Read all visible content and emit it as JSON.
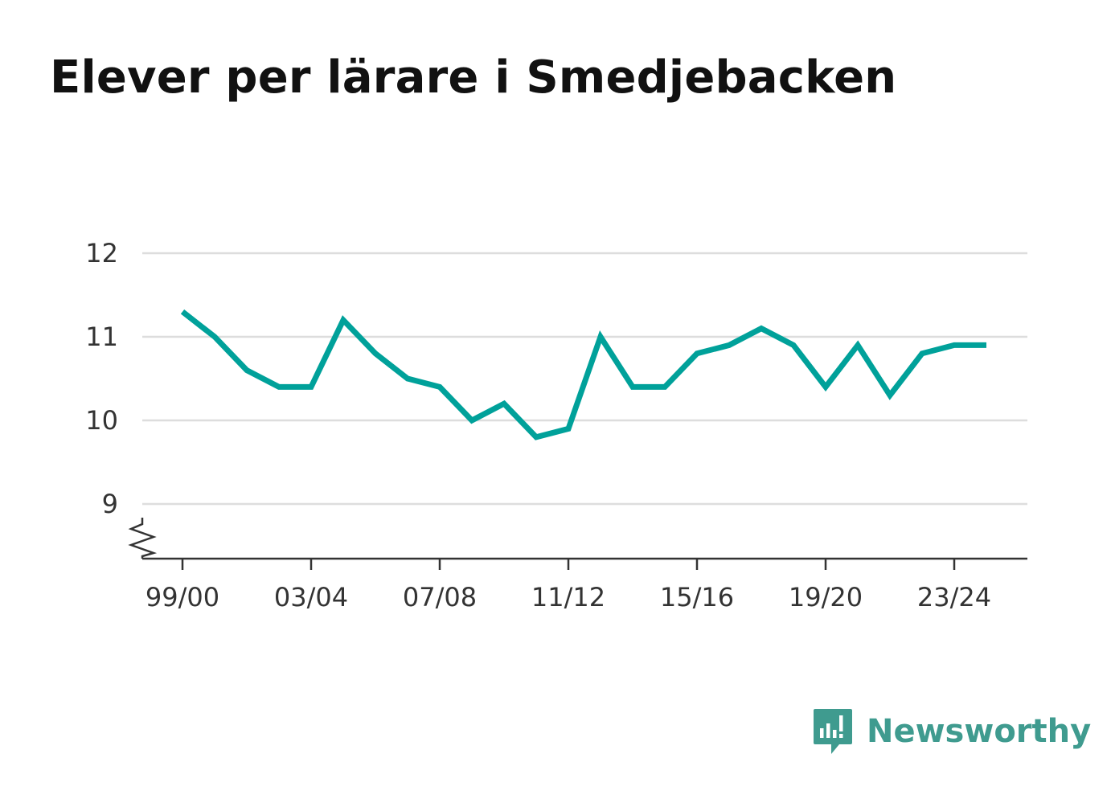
{
  "title": "Elever per lärare i Smedjebacken",
  "brand": {
    "name": "Newsworthy",
    "icon": "newsworthy-logo-icon",
    "color": "#3f9b8f"
  },
  "chart_data": {
    "type": "line",
    "title": "Elever per lärare i Smedjebacken",
    "xlabel": "",
    "ylabel": "",
    "x": [
      "99/00",
      "00/01",
      "01/02",
      "02/03",
      "03/04",
      "04/05",
      "05/06",
      "06/07",
      "07/08",
      "08/09",
      "09/10",
      "10/11",
      "11/12",
      "12/13",
      "13/14",
      "14/15",
      "15/16",
      "16/17",
      "17/18",
      "18/19",
      "19/20",
      "20/21",
      "21/22",
      "22/23",
      "23/24",
      "24/25"
    ],
    "series": [
      {
        "values": [
          11.3,
          11.0,
          10.6,
          10.4,
          10.4,
          11.2,
          10.8,
          10.5,
          10.4,
          10.0,
          10.2,
          9.8,
          9.9,
          11.0,
          10.4,
          10.4,
          10.8,
          10.9,
          11.1,
          10.9,
          10.4,
          10.9,
          10.3,
          10.8,
          10.9,
          10.9
        ],
        "color": "#00a19a"
      }
    ],
    "x_tick_labels": [
      "99/00",
      "03/04",
      "07/08",
      "11/12",
      "15/16",
      "19/20",
      "23/24"
    ],
    "y_ticks": [
      9,
      10,
      11,
      12
    ],
    "ylim": [
      8.35,
      12
    ],
    "y_axis_break": true,
    "grid": true,
    "legend": "none"
  }
}
